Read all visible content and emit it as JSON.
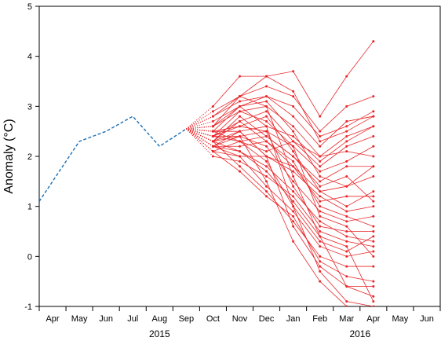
{
  "chart_data": {
    "type": "line",
    "title": "",
    "xlabel": "",
    "ylabel": "Anomaly (°C)",
    "ylim": [
      -1,
      5
    ],
    "yticks": [
      -1,
      0,
      1,
      2,
      3,
      4,
      5
    ],
    "months": [
      "Apr",
      "May",
      "Jun",
      "Jul",
      "Aug",
      "Sep",
      "Oct",
      "Nov",
      "Dec",
      "Jan",
      "Feb",
      "Mar",
      "Apr",
      "May",
      "Jun"
    ],
    "years": [
      {
        "label": "2015",
        "from": "Apr",
        "to": "Dec",
        "start_index": 0,
        "end_index": 8
      },
      {
        "label": "2016",
        "from": "Jan",
        "to": "Jun",
        "start_index": 9,
        "end_index": 14
      }
    ],
    "colors": {
      "observed": "#1a6fb5",
      "forecast": "#e8262a"
    },
    "observed": {
      "x": [
        "Mar 2015",
        "May 2015",
        "Jun 2015",
        "Jul 2015",
        "Aug 2015",
        "Sep 2015"
      ],
      "values": [
        0.7,
        2.3,
        2.5,
        2.8,
        2.2,
        2.55
      ],
      "style": "dashed"
    },
    "forecast_start": {
      "month": "Sep 2015",
      "value": 2.55
    },
    "forecast_months": [
      "Oct",
      "Nov",
      "Dec",
      "Jan",
      "Feb",
      "Mar",
      "Apr"
    ],
    "forecasts": [
      [
        3.0,
        3.6,
        3.6,
        3.7,
        2.8,
        3.6,
        4.3
      ],
      [
        2.9,
        3.2,
        3.4,
        3.2,
        2.5,
        3.0,
        3.2
      ],
      [
        2.8,
        3.1,
        3.2,
        3.0,
        2.4,
        2.6,
        2.9
      ],
      [
        2.6,
        3.2,
        3.6,
        3.3,
        2.3,
        2.5,
        2.8
      ],
      [
        2.5,
        3.0,
        3.2,
        2.8,
        2.2,
        2.7,
        2.8
      ],
      [
        2.4,
        2.9,
        3.0,
        2.6,
        2.0,
        2.4,
        2.6
      ],
      [
        2.3,
        2.7,
        2.9,
        2.3,
        1.8,
        2.2,
        2.4
      ],
      [
        2.3,
        2.5,
        2.6,
        2.4,
        1.9,
        2.3,
        2.6
      ],
      [
        2.2,
        2.4,
        2.5,
        2.2,
        1.7,
        1.9,
        2.2
      ],
      [
        2.1,
        2.3,
        2.4,
        2.0,
        1.5,
        1.8,
        1.8
      ],
      [
        2.6,
        3.0,
        3.1,
        2.5,
        1.6,
        1.4,
        1.6
      ],
      [
        2.4,
        2.6,
        2.8,
        2.1,
        1.3,
        1.0,
        1.3
      ],
      [
        2.2,
        2.2,
        2.3,
        1.8,
        1.1,
        1.2,
        1.2
      ],
      [
        2.1,
        2.0,
        2.0,
        1.7,
        1.2,
        0.9,
        1.0
      ],
      [
        2.3,
        2.4,
        2.2,
        1.5,
        0.9,
        0.7,
        0.8
      ],
      [
        2.5,
        2.6,
        2.5,
        1.4,
        0.6,
        0.5,
        0.5
      ],
      [
        2.2,
        2.1,
        1.8,
        1.3,
        0.7,
        0.4,
        0.3
      ],
      [
        2.0,
        1.9,
        1.6,
        1.2,
        0.5,
        0.3,
        0.2
      ],
      [
        2.4,
        2.3,
        1.9,
        1.0,
        0.3,
        0.1,
        0.4
      ],
      [
        2.2,
        2.0,
        1.4,
        0.9,
        0.2,
        0.0,
        0.1
      ],
      [
        2.3,
        1.8,
        1.3,
        0.7,
        0.0,
        -0.2,
        -0.2
      ],
      [
        2.1,
        1.7,
        1.2,
        0.8,
        -0.1,
        -0.4,
        -0.5
      ],
      [
        2.5,
        2.5,
        2.0,
        0.6,
        -0.2,
        -0.6,
        -0.6
      ],
      [
        2.7,
        3.0,
        2.6,
        1.0,
        -0.3,
        -0.9,
        -1.0
      ],
      [
        2.8,
        3.2,
        3.0,
        1.6,
        0.4,
        -0.6,
        -0.8
      ],
      [
        2.4,
        2.4,
        1.5,
        0.3,
        -0.5,
        -1.0,
        -1.1
      ],
      [
        2.6,
        2.9,
        2.7,
        2.2,
        0.8,
        0.6,
        0.0
      ],
      [
        2.3,
        2.1,
        1.7,
        1.1,
        0.4,
        0.2,
        -0.9
      ],
      [
        2.4,
        2.7,
        2.3,
        1.9,
        1.0,
        0.8,
        0.6
      ],
      [
        2.2,
        2.5,
        2.0,
        1.8,
        1.3,
        1.4,
        1.8
      ],
      [
        2.5,
        2.3,
        2.1,
        2.3,
        2.0,
        2.1,
        2.0
      ],
      [
        2.3,
        2.8,
        2.4,
        2.0,
        1.4,
        1.6,
        1.1
      ]
    ]
  }
}
